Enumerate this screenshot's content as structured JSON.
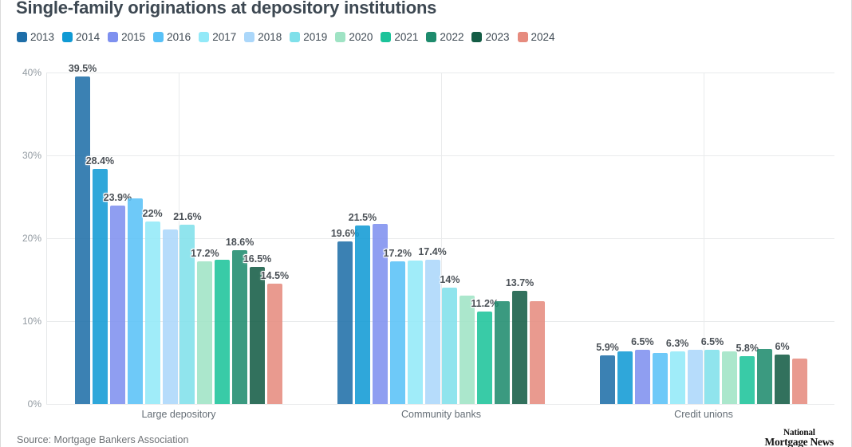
{
  "title": "Single-family originations at depository institutions",
  "source": "Source: Mortgage Bankers Association",
  "logo": {
    "line1": "National",
    "line2": "Mortgage News"
  },
  "chart_data": {
    "type": "bar",
    "title": "Single-family originations at depository institutions",
    "categories": [
      "Large depository",
      "Community banks",
      "Credit unions"
    ],
    "y_ticks": [
      "0%",
      "10%",
      "20%",
      "30%",
      "40%"
    ],
    "ylim": [
      0,
      40
    ],
    "grid": true,
    "legend_position": "top-left",
    "series": [
      {
        "name": "2013",
        "color": "#1e6ea8",
        "values": [
          39.5,
          19.6,
          5.9
        ],
        "labels": [
          "39.5%",
          "19.6%",
          "5.9%"
        ]
      },
      {
        "name": "2014",
        "color": "#109ad4",
        "values": [
          28.4,
          21.5,
          6.3
        ],
        "labels": [
          "28.4%",
          "21.5%",
          null
        ]
      },
      {
        "name": "2015",
        "color": "#7e90ef",
        "values": [
          23.9,
          21.7,
          6.5
        ],
        "labels": [
          "23.9%",
          null,
          "6.5%"
        ]
      },
      {
        "name": "2016",
        "color": "#58c1f7",
        "values": [
          24.8,
          17.2,
          6.2
        ],
        "labels": [
          null,
          "17.2%",
          null
        ]
      },
      {
        "name": "2017",
        "color": "#92e9f8",
        "values": [
          22,
          17.3,
          6.3
        ],
        "labels": [
          "22%",
          null,
          "6.3%"
        ]
      },
      {
        "name": "2018",
        "color": "#abd7fa",
        "values": [
          21.1,
          17.4,
          6.5
        ],
        "labels": [
          null,
          "17.4%",
          null
        ]
      },
      {
        "name": "2019",
        "color": "#7fe0ea",
        "values": [
          21.6,
          14,
          6.5
        ],
        "labels": [
          "21.6%",
          "14%",
          "6.5%"
        ]
      },
      {
        "name": "2020",
        "color": "#9fe3c4",
        "values": [
          17.2,
          13.1,
          6.3
        ],
        "labels": [
          "17.2%",
          null,
          null
        ]
      },
      {
        "name": "2021",
        "color": "#1cc39a",
        "values": [
          17.4,
          11.2,
          5.8
        ],
        "labels": [
          null,
          "11.2%",
          "5.8%"
        ]
      },
      {
        "name": "2022",
        "color": "#1e8b6d",
        "values": [
          18.6,
          12.4,
          6.6
        ],
        "labels": [
          "18.6%",
          null,
          null
        ]
      },
      {
        "name": "2023",
        "color": "#145c45",
        "values": [
          16.5,
          13.7,
          6
        ],
        "labels": [
          "16.5%",
          "13.7%",
          "6%"
        ]
      },
      {
        "name": "2024",
        "color": "#e68b7e",
        "values": [
          14.5,
          12.4,
          5.5
        ],
        "labels": [
          "14.5%",
          null,
          null
        ]
      }
    ]
  }
}
